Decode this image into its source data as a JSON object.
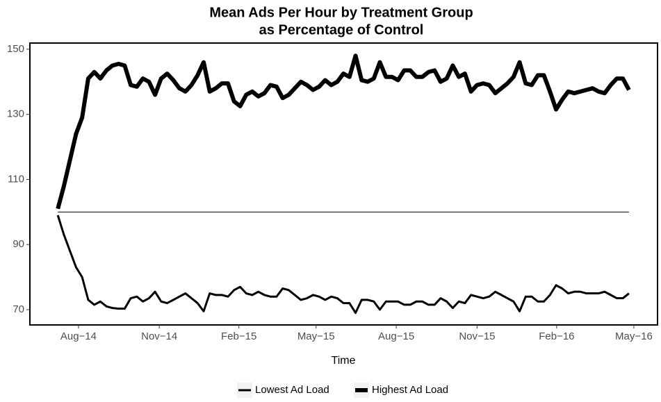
{
  "chart_data": {
    "type": "line",
    "title": [
      "Mean Ads Per Hour by Treatment Group",
      "as Percentage of Control"
    ],
    "x_label": "Time",
    "x": [
      0,
      1,
      2,
      3,
      4,
      5,
      6,
      7,
      8,
      9,
      10,
      11,
      12,
      13,
      14,
      15,
      16,
      17,
      18,
      19,
      20,
      21,
      22,
      23,
      24,
      25,
      26,
      27,
      28,
      29,
      30,
      31,
      32,
      33,
      34,
      35,
      36,
      37,
      38,
      39,
      40,
      41,
      42,
      43,
      44,
      45,
      46,
      47,
      48,
      49,
      50,
      51,
      52,
      53,
      54,
      55,
      56,
      57,
      58,
      59,
      60,
      61,
      62,
      63,
      64,
      65,
      66,
      67,
      68,
      69,
      70,
      71,
      72,
      73,
      74,
      75,
      76,
      77,
      78,
      79,
      80,
      81,
      82,
      83,
      84,
      85,
      86,
      87,
      88,
      89,
      90,
      91,
      92,
      93,
      94
    ],
    "series": [
      {
        "name": "Lowest Ad Load",
        "color": "#000000",
        "width": 3,
        "values": [
          99,
          93,
          88,
          83,
          80,
          73,
          71.5,
          72.5,
          71,
          70.5,
          70.3,
          70.3,
          73.5,
          74,
          72.5,
          73.5,
          75.5,
          72.5,
          72,
          73,
          74,
          75,
          73.5,
          72,
          69.5,
          75,
          74.5,
          74.5,
          74,
          76,
          77,
          75,
          74.5,
          75.5,
          74.5,
          74,
          74,
          76.5,
          76,
          74.5,
          73,
          73.5,
          74.5,
          74,
          73,
          74,
          73.5,
          72,
          72,
          69,
          73,
          73,
          72.5,
          70,
          72.5,
          72.5,
          72.5,
          71.5,
          71.5,
          72.5,
          72.5,
          71.5,
          71.5,
          73.5,
          72.5,
          70.5,
          72.5,
          72,
          74.5,
          74,
          73.5,
          74,
          75.5,
          74.5,
          73.5,
          72.5,
          69.5,
          74,
          74,
          72.5,
          72.5,
          74.5,
          77.5,
          76.5,
          75,
          75.5,
          75.5,
          75,
          75,
          75,
          75.5,
          74.5,
          73.5,
          73.5,
          75
        ]
      },
      {
        "name": "Highest Ad Load",
        "color": "#000000",
        "width": 6,
        "values": [
          101,
          108,
          116,
          124,
          129,
          141,
          143,
          141,
          143.5,
          145,
          145.5,
          145,
          139,
          138.5,
          141,
          140,
          136,
          141,
          142.5,
          140.5,
          138,
          137,
          139,
          142,
          146,
          137,
          138,
          139.5,
          139.5,
          134,
          132.5,
          136,
          137,
          135.5,
          136.5,
          139,
          138.5,
          135,
          136,
          138,
          140,
          139,
          137.5,
          138.5,
          140.5,
          139,
          140,
          142.5,
          141.5,
          148,
          140.5,
          140,
          141,
          146,
          141.5,
          141.5,
          140.5,
          143.5,
          143.5,
          141.5,
          141.5,
          143,
          143.5,
          140,
          141,
          145,
          141.5,
          142.5,
          137,
          139,
          139.5,
          139,
          136.5,
          138,
          139.5,
          141.5,
          146,
          139.5,
          139,
          142,
          142,
          137,
          131.5,
          134.5,
          137,
          136.5,
          137,
          137.5,
          138,
          137,
          136.5,
          139,
          141,
          141,
          137.5
        ]
      }
    ],
    "hline": 100,
    "xlim": [
      -4.6,
      98.7
    ],
    "xticks": [
      {
        "value": 3.4,
        "label": "Aug−14"
      },
      {
        "value": 16.7,
        "label": "Nov−14"
      },
      {
        "value": 29.8,
        "label": "Feb−15"
      },
      {
        "value": 42.5,
        "label": "May−15"
      },
      {
        "value": 55.7,
        "label": "Aug−15"
      },
      {
        "value": 69.0,
        "label": "Nov−15"
      },
      {
        "value": 82.1,
        "label": "Feb−16"
      },
      {
        "value": 94.8,
        "label": "May−16"
      }
    ],
    "ylim": [
      65.3,
      151.9
    ],
    "yticks": [
      70,
      90,
      110,
      130,
      150
    ],
    "legend": "bottom"
  }
}
